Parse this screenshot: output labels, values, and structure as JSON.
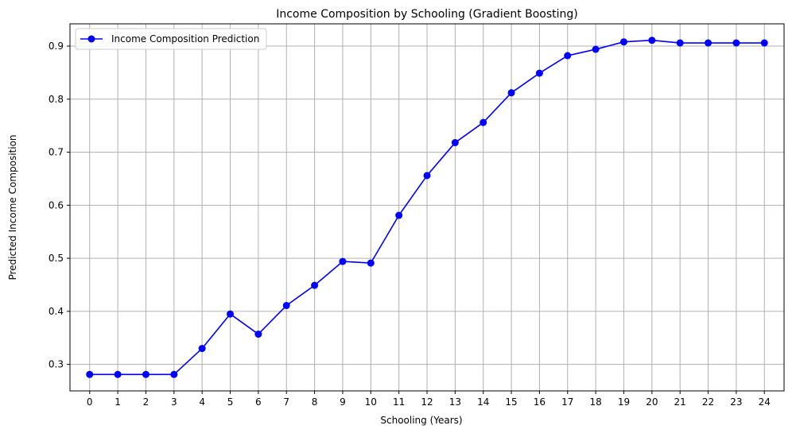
{
  "chart_data": {
    "type": "line",
    "title": "Income Composition by Schooling (Gradient Boosting)",
    "xlabel": "Schooling (Years)",
    "ylabel": "Predicted Income Composition",
    "x": [
      0,
      1,
      2,
      3,
      4,
      5,
      6,
      7,
      8,
      9,
      10,
      11,
      12,
      13,
      14,
      15,
      16,
      17,
      18,
      19,
      20,
      21,
      22,
      23,
      24
    ],
    "x_tick_labels": [
      "0",
      "1",
      "2",
      "3",
      "4",
      "5",
      "6",
      "7",
      "8",
      "9",
      "10",
      "11",
      "12",
      "13",
      "14",
      "15",
      "16",
      "17",
      "18",
      "19",
      "20",
      "21",
      "22",
      "23",
      "24"
    ],
    "series": [
      {
        "name": "Income Composition Prediction",
        "color": "#0000ff",
        "marker": "circle",
        "values": [
          0.281,
          0.281,
          0.281,
          0.281,
          0.33,
          0.395,
          0.357,
          0.411,
          0.449,
          0.494,
          0.491,
          0.581,
          0.656,
          0.718,
          0.756,
          0.812,
          0.849,
          0.882,
          0.894,
          0.908,
          0.911,
          0.906,
          0.906,
          0.906,
          0.906
        ]
      }
    ],
    "y_ticks": [
      0.3,
      0.4,
      0.5,
      0.6,
      0.7,
      0.8,
      0.9
    ],
    "y_tick_labels": [
      "0.3",
      "0.4",
      "0.5",
      "0.6",
      "0.7",
      "0.8",
      "0.9"
    ],
    "xlim": [
      -0.7,
      24.7
    ],
    "ylim": [
      0.25,
      0.942
    ],
    "grid": true,
    "grid_color": "#b0b0b0",
    "legend_position": "upper-left"
  }
}
